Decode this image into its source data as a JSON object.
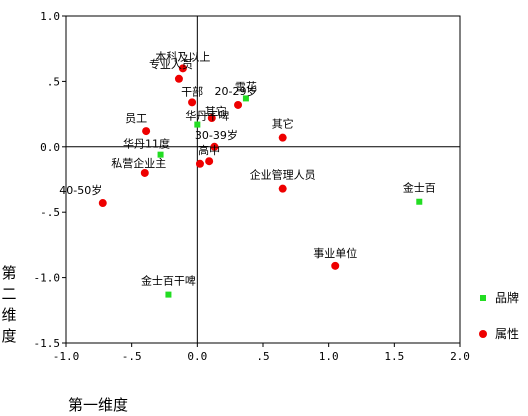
{
  "chart_data": {
    "type": "scatter",
    "xlabel": "第一维度",
    "ylabel": "第二维度",
    "xlim": [
      -1.0,
      2.0
    ],
    "ylim": [
      -1.5,
      1.0
    ],
    "x_ticks": [
      {
        "v": -1.0,
        "t": "-1.0"
      },
      {
        "v": -0.5,
        "t": "-.5"
      },
      {
        "v": 0.0,
        "t": "0.0"
      },
      {
        "v": 0.5,
        "t": ".5"
      },
      {
        "v": 1.0,
        "t": "1.0"
      },
      {
        "v": 1.5,
        "t": "1.5"
      },
      {
        "v": 2.0,
        "t": "2.0"
      }
    ],
    "y_ticks": [
      {
        "v": 1.0,
        "t": "1.0"
      },
      {
        "v": 0.5,
        "t": ".5"
      },
      {
        "v": 0.0,
        "t": "0.0"
      },
      {
        "v": -0.5,
        "t": "-.5"
      },
      {
        "v": -1.0,
        "t": "-1.0"
      },
      {
        "v": -1.5,
        "t": "-1.5"
      }
    ],
    "reference_lines": {
      "x": 0,
      "y": 0
    },
    "grid": false,
    "legend_position": "right",
    "series": [
      {
        "name": "品牌",
        "marker": "square",
        "color": "#22dd22",
        "points": [
          {
            "label": "雪花",
            "x": 0.37,
            "y": 0.37
          },
          {
            "label": "华丹干啤",
            "x": 0.0,
            "y": 0.17
          },
          {
            "label": "华丹11度",
            "x": -0.28,
            "y": -0.06
          },
          {
            "label": "金士百",
            "x": 1.69,
            "y": -0.42
          },
          {
            "label": "金士百干啤",
            "x": -0.22,
            "y": -1.13
          }
        ]
      },
      {
        "name": "属性",
        "marker": "circle",
        "color": "#ee0000",
        "points": [
          {
            "label": "本科及以上",
            "x": -0.11,
            "y": 0.6
          },
          {
            "label": "专业人员",
            "x": -0.14,
            "y": 0.52
          },
          {
            "label": "干部",
            "x": -0.04,
            "y": 0.34
          },
          {
            "label": "20-29岁",
            "x": 0.31,
            "y": 0.32
          },
          {
            "label": "其它",
            "x": 0.11,
            "y": 0.22
          },
          {
            "label": "员工",
            "x": -0.39,
            "y": 0.12
          },
          {
            "label": "其它",
            "x": 0.65,
            "y": 0.07
          },
          {
            "label": "30-39岁",
            "x": 0.13,
            "y": 0.0
          },
          {
            "label": "高中",
            "x": 0.09,
            "y": -0.11
          },
          {
            "label": "",
            "x": 0.02,
            "y": -0.13
          },
          {
            "label": "私营企业主",
            "x": -0.4,
            "y": -0.2
          },
          {
            "label": "企业管理人员",
            "x": 0.65,
            "y": -0.32
          },
          {
            "label": "40-50岁",
            "x": -0.72,
            "y": -0.43
          },
          {
            "label": "事业单位",
            "x": 1.05,
            "y": -0.91
          }
        ]
      }
    ]
  }
}
